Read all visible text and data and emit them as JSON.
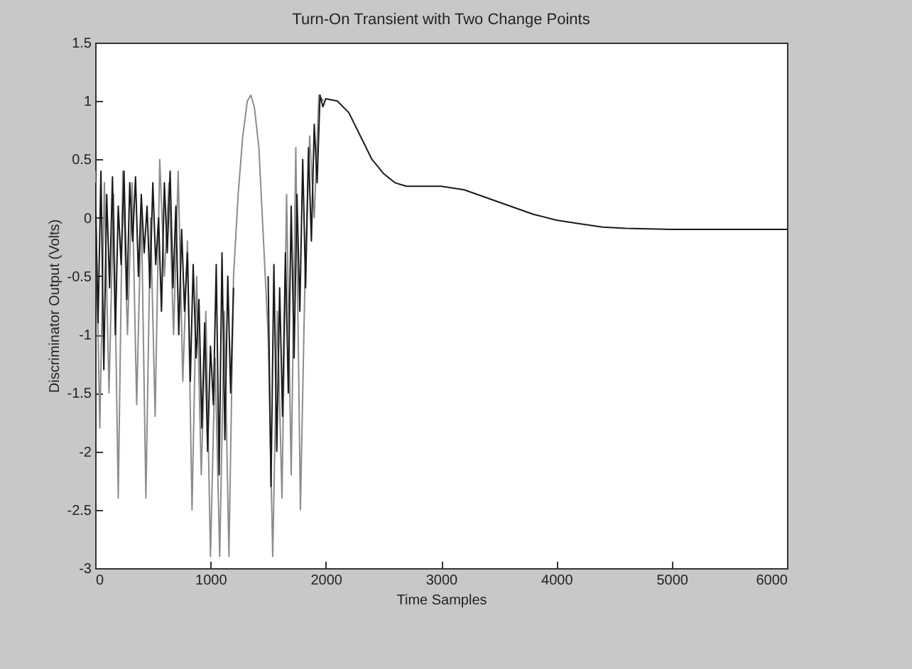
{
  "chart_data": {
    "type": "line",
    "title": "Turn-On Transient with Two Change Points",
    "xlabel": "Time Samples",
    "ylabel": "Discriminator Output (Volts)",
    "xlim": [
      0,
      6000
    ],
    "xticks": [
      0,
      1000,
      2000,
      3000,
      4000,
      5000,
      6000
    ],
    "ylim": [
      -3,
      1.5
    ],
    "yticks": [
      -3,
      -2.5,
      -2,
      -1.5,
      -1,
      -0.5,
      0,
      0.5,
      1,
      1.5
    ],
    "legend": false,
    "line_style": "solid",
    "series": [
      {
        "color": "#8c8c8c",
        "x": [
          0,
          40,
          80,
          120,
          160,
          200,
          240,
          280,
          320,
          360,
          400,
          440,
          480,
          520,
          560,
          600,
          640,
          680,
          720,
          760,
          800,
          840,
          880,
          920,
          960,
          1000,
          1040,
          1080,
          1120,
          1160,
          1200,
          1240,
          1280,
          1320,
          1350,
          1380,
          1420,
          1460,
          1500,
          1540,
          1580,
          1620,
          1660,
          1700,
          1740,
          1780,
          1820,
          1860,
          1900,
          1940,
          1980
        ],
        "values": [
          0.4,
          -1.8,
          0.3,
          -1.5,
          0.2,
          -2.4,
          0.4,
          -1.0,
          0.3,
          -1.6,
          0.1,
          -2.4,
          0.0,
          -1.7,
          0.5,
          -0.5,
          0.3,
          -1.0,
          0.4,
          -1.4,
          -0.2,
          -2.5,
          -0.5,
          -2.2,
          -0.8,
          -2.9,
          -1.2,
          -2.9,
          -0.8,
          -2.9,
          -0.5,
          0.2,
          0.7,
          1.0,
          1.05,
          0.95,
          0.6,
          -0.2,
          -1.0,
          -2.9,
          -0.8,
          -2.4,
          0.2,
          -2.2,
          0.6,
          -2.5,
          -0.5,
          0.7,
          0.0,
          1.05,
          1.0
        ]
      },
      {
        "color": "#1a1a1a",
        "x": [
          0,
          25,
          50,
          75,
          100,
          125,
          150,
          175,
          200,
          225,
          250,
          275,
          300,
          325,
          350,
          375,
          400,
          425,
          450,
          475,
          500,
          525,
          550,
          575,
          600,
          625,
          650,
          675,
          700,
          725,
          750,
          775,
          800,
          825,
          850,
          875,
          900,
          925,
          950,
          975,
          1000,
          1025,
          1050,
          1075,
          1100,
          1125,
          1150,
          1175,
          1200,
          1350,
          1500,
          1525,
          1550,
          1575,
          1600,
          1625,
          1650,
          1675,
          1700,
          1725,
          1750,
          1775,
          1800,
          1825,
          1850,
          1875,
          1900,
          1925,
          1950,
          1975,
          2000,
          2100,
          2200,
          2300,
          2400,
          2500,
          2600,
          2700,
          2800,
          3000,
          3200,
          3400,
          3600,
          3800,
          4000,
          4200,
          4400,
          4600,
          5000,
          5500,
          6000
        ],
        "values": [
          0.3,
          -0.9,
          0.4,
          -1.3,
          0.2,
          -0.6,
          0.35,
          -1.0,
          0.1,
          -0.4,
          0.4,
          -0.7,
          0.3,
          -0.2,
          0.35,
          -0.5,
          0.2,
          -0.3,
          0.1,
          -0.6,
          0.3,
          -0.4,
          0.0,
          -0.8,
          0.3,
          -0.3,
          0.4,
          -0.6,
          0.1,
          -1.0,
          -0.1,
          -0.8,
          -0.3,
          -1.4,
          -0.4,
          -1.2,
          -0.7,
          -1.8,
          -0.9,
          -2.0,
          -1.1,
          -1.6,
          -0.4,
          -2.2,
          -0.3,
          -1.9,
          -0.5,
          -1.5,
          -0.6,
          null,
          -0.5,
          -2.3,
          -0.4,
          -2.0,
          -0.6,
          -1.7,
          -0.3,
          -1.5,
          0.1,
          -1.2,
          0.2,
          -0.8,
          0.5,
          -0.6,
          0.6,
          -0.2,
          0.8,
          0.3,
          1.05,
          0.95,
          1.02,
          1.0,
          0.9,
          0.7,
          0.5,
          0.38,
          0.3,
          0.27,
          0.27,
          0.27,
          0.24,
          0.17,
          0.1,
          0.03,
          -0.02,
          -0.05,
          -0.08,
          -0.09,
          -0.1,
          -0.1,
          -0.1
        ]
      }
    ]
  }
}
